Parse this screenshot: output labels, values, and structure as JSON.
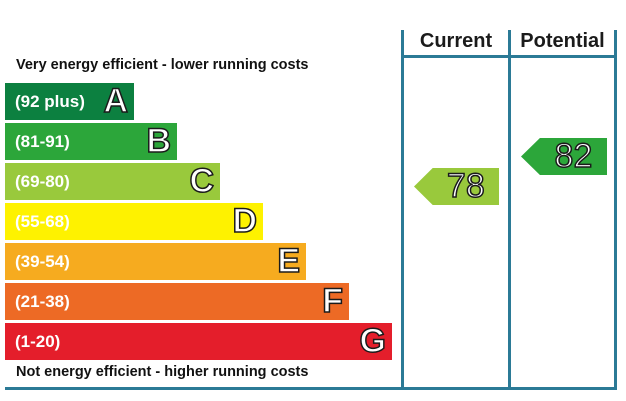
{
  "header": {
    "current_label": "Current",
    "potential_label": "Potential"
  },
  "captions": {
    "top": "Very energy efficient - lower running costs",
    "bottom": "Not energy efficient - higher running costs"
  },
  "bands": [
    {
      "range": "(92 plus)",
      "letter": "A",
      "color": "#0c8040"
    },
    {
      "range": "(81-91)",
      "letter": "B",
      "color": "#2ca63a"
    },
    {
      "range": "(69-80)",
      "letter": "C",
      "color": "#99c93c"
    },
    {
      "range": "(55-68)",
      "letter": "D",
      "color": "#fef200"
    },
    {
      "range": "(39-54)",
      "letter": "E",
      "color": "#f6ab1f"
    },
    {
      "range": "(21-38)",
      "letter": "F",
      "color": "#ed6a25"
    },
    {
      "range": "(1-20)",
      "letter": "G",
      "color": "#e41e2b"
    }
  ],
  "ratings": {
    "current": {
      "value": "78",
      "band": "C",
      "color": "#99c93c"
    },
    "potential": {
      "value": "82",
      "band": "B",
      "color": "#2ca63a"
    }
  }
}
